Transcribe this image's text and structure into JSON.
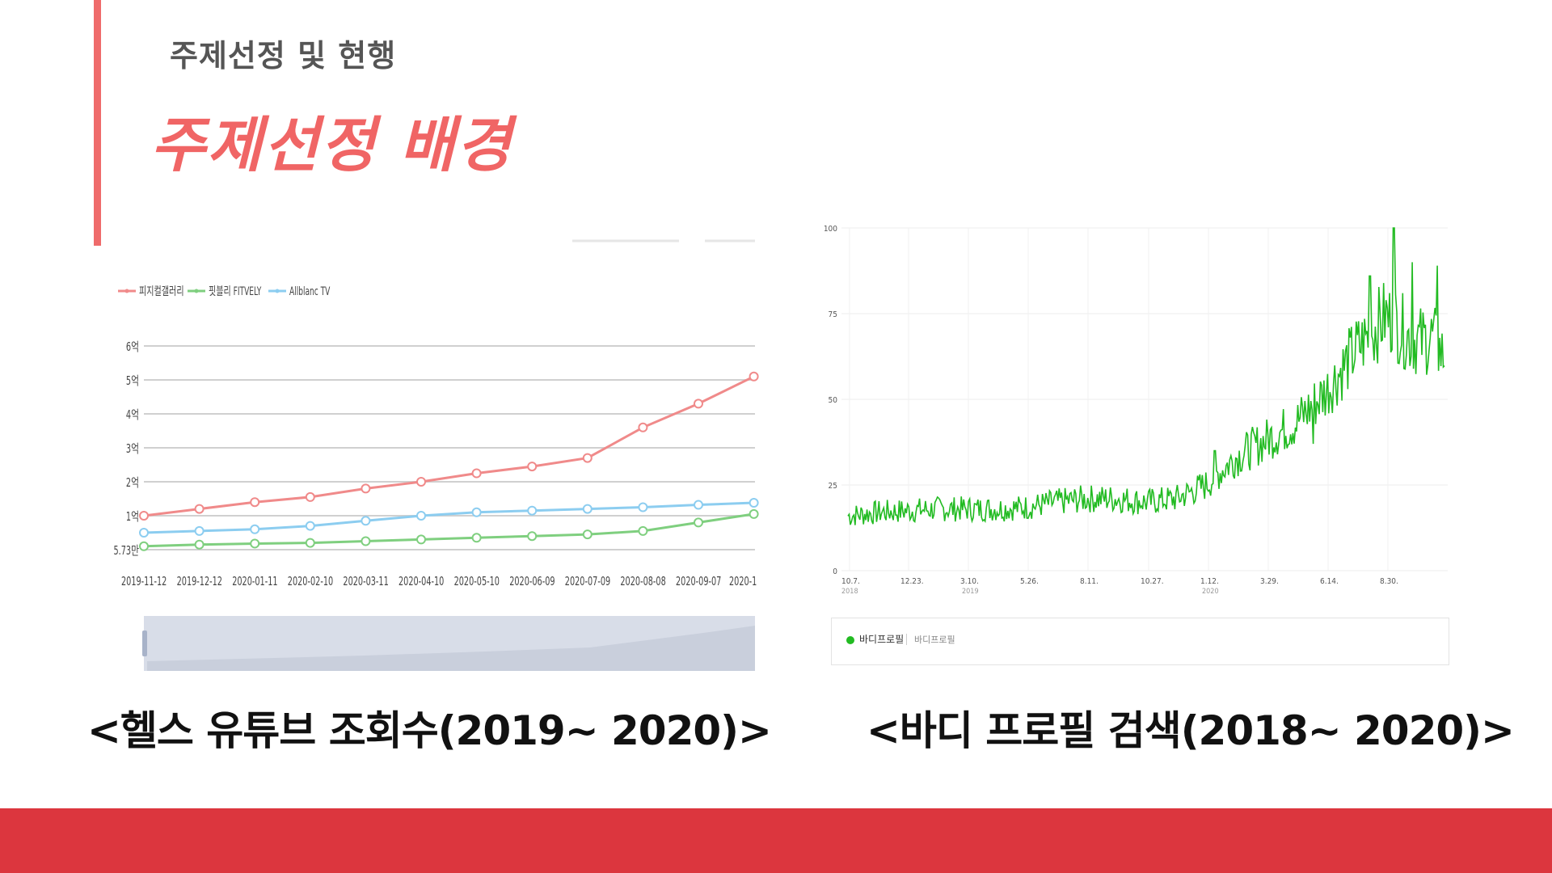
{
  "header": {
    "subtitle": "주제선정 및 현행",
    "title": "주제선정 배경"
  },
  "captions": {
    "left": "<헬스 유튜브 조회수(2019~ 2020)>",
    "right": "<바디 프로필 검색(2018~ 2020)>"
  },
  "colors": {
    "accent": "#ef6b6b",
    "title": "#f06565",
    "footer": "#dc363e",
    "series_pink": "#f08a8a",
    "series_green": "#7fcf7f",
    "series_blue": "#8ccdf0",
    "trend_green": "#22bb22"
  },
  "chart_data": [
    {
      "type": "line",
      "legend": [
        "피지컬갤러리",
        "핏블리 FITVELY",
        "Allblanc TV"
      ],
      "legend_position": "top-left",
      "y_tick_labels": [
        "5.73만",
        "1억",
        "2억",
        "3억",
        "4억",
        "5억",
        "6억"
      ],
      "categories": [
        "2019-11-12",
        "2019-12-12",
        "2020-01-11",
        "2020-02-10",
        "2020-03-11",
        "2020-04-10",
        "2020-05-10",
        "2020-06-09",
        "2020-07-09",
        "2020-08-08",
        "2020-09-07",
        "2020-1"
      ],
      "ylim": [
        0,
        6
      ],
      "grid": true,
      "series": [
        {
          "name": "피지컬갤러리",
          "values": [
            1.0,
            1.2,
            1.4,
            1.55,
            1.8,
            2.0,
            2.25,
            2.45,
            2.7,
            3.6,
            4.3,
            5.1
          ]
        },
        {
          "name": "핏블리 FITVELY",
          "values": [
            0.1,
            0.15,
            0.18,
            0.2,
            0.25,
            0.3,
            0.35,
            0.4,
            0.45,
            0.55,
            0.8,
            1.05
          ]
        },
        {
          "name": "Allblanc TV",
          "values": [
            0.5,
            0.55,
            0.6,
            0.7,
            0.85,
            1.0,
            1.1,
            1.15,
            1.2,
            1.25,
            1.32,
            1.38
          ]
        }
      ]
    },
    {
      "type": "line",
      "y_tick_labels": [
        "0",
        "25",
        "50",
        "75",
        "100"
      ],
      "ylim": [
        0,
        100
      ],
      "x_tick_labels": [
        "10.7.",
        "12.23.",
        "3.10.",
        "5.26.",
        "8.11.",
        "10.27.",
        "1.12.",
        "3.29.",
        "6.14.",
        "8.30."
      ],
      "year_labels": [
        "2018",
        "2019",
        "2020"
      ],
      "grid": true,
      "series": [
        {
          "name": "바디프로필",
          "anchors": [
            [
              0,
              16
            ],
            [
              0.05,
              17
            ],
            [
              0.1,
              17.5
            ],
            [
              0.15,
              18
            ],
            [
              0.2,
              18
            ],
            [
              0.25,
              18
            ],
            [
              0.3,
              18.5
            ],
            [
              0.35,
              20
            ],
            [
              0.4,
              21
            ],
            [
              0.45,
              21
            ],
            [
              0.5,
              20
            ],
            [
              0.55,
              21
            ],
            [
              0.6,
              25
            ],
            [
              0.65,
              33
            ],
            [
              0.7,
              38
            ],
            [
              0.75,
              43
            ],
            [
              0.8,
              52
            ],
            [
              0.85,
              64
            ],
            [
              0.88,
              70
            ],
            [
              0.9,
              74
            ],
            [
              0.92,
              72
            ],
            [
              0.94,
              68
            ],
            [
              0.96,
              67
            ],
            [
              0.98,
              68
            ],
            [
              1.0,
              62
            ]
          ]
        }
      ],
      "legend": [
        "바디프로필",
        "바디프로필"
      ]
    }
  ]
}
